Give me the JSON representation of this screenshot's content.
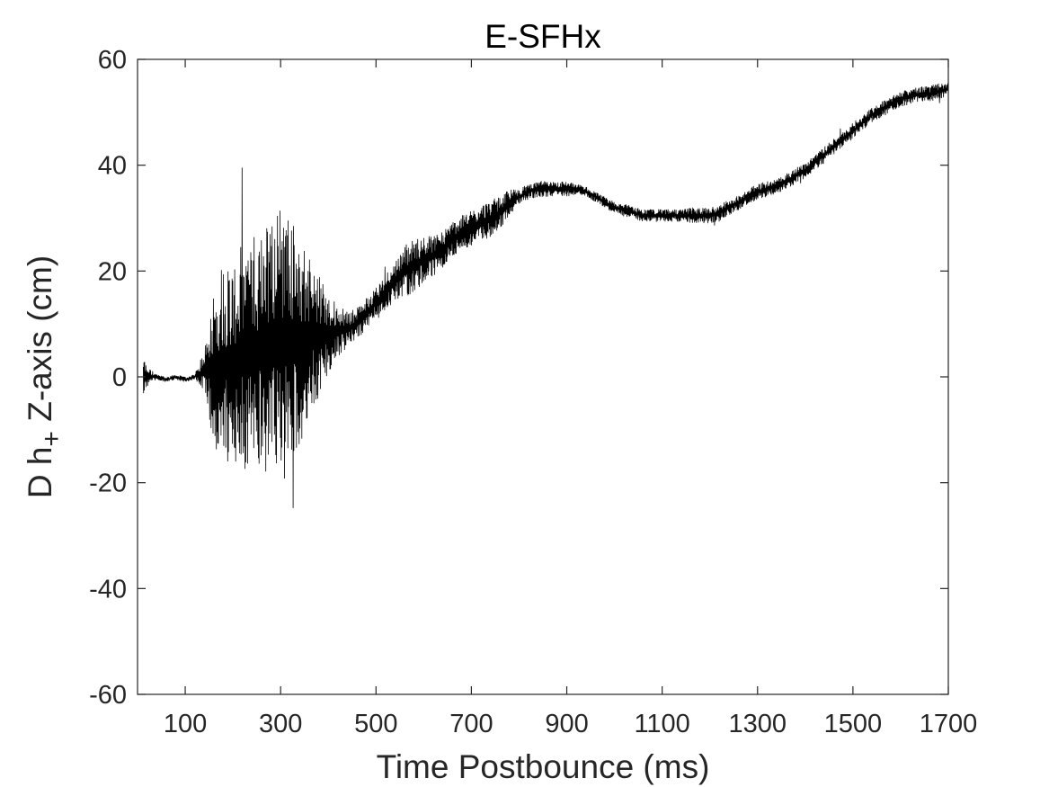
{
  "chart_data": {
    "type": "line",
    "title": "E-SFHx",
    "xlabel": "Time Postbounce (ms)",
    "ylabel_main": "D h",
    "ylabel_sub": "+",
    "ylabel_rest": " Z-axis (cm)",
    "xlim": [
      0,
      1700
    ],
    "ylim": [
      -60,
      60
    ],
    "xticks": [
      100,
      300,
      500,
      700,
      900,
      1100,
      1300,
      1500,
      1700
    ],
    "yticks": [
      -60,
      -40,
      -20,
      0,
      20,
      40,
      60
    ],
    "grid": false,
    "legend": "none",
    "line_color": "#000000",
    "series": [
      {
        "x": [
          0,
          10,
          20,
          40,
          60,
          80,
          100,
          120,
          140,
          160,
          180,
          200,
          220,
          240,
          260,
          280,
          300,
          320,
          340,
          360,
          380,
          400,
          420,
          440,
          460,
          480,
          500,
          520,
          540,
          560,
          580,
          600,
          620,
          640,
          660,
          680,
          700,
          720,
          740,
          760,
          780,
          800,
          820,
          840,
          860,
          880,
          900,
          920,
          940,
          960,
          980,
          1000,
          1020,
          1040,
          1060,
          1080,
          1100,
          1120,
          1140,
          1160,
          1180,
          1200,
          1220,
          1240,
          1260,
          1280,
          1300,
          1320,
          1340,
          1360,
          1380,
          1400,
          1420,
          1440,
          1460,
          1480,
          1500,
          1520,
          1540,
          1560,
          1580,
          1600,
          1620,
          1640,
          1660,
          1680,
          1700
        ],
        "y": [
          0,
          0.5,
          0,
          0,
          -0.5,
          0,
          -0.5,
          0,
          1,
          2,
          2.5,
          3,
          3.5,
          4.5,
          5,
          5.5,
          6,
          6.5,
          7,
          7,
          7.5,
          8,
          8.5,
          9,
          10,
          12,
          14,
          16,
          18,
          20,
          21,
          22,
          23,
          24,
          26,
          27,
          28,
          29,
          30,
          31,
          33,
          34,
          35,
          35.5,
          35.5,
          35.5,
          35.5,
          35.5,
          35,
          34,
          33,
          32,
          31.5,
          31,
          30.5,
          30.5,
          30.5,
          30.5,
          30.5,
          30.5,
          30.5,
          30.5,
          31,
          32,
          33,
          34,
          35,
          35.5,
          36,
          37,
          38,
          39,
          40.5,
          42,
          43.5,
          45,
          46.5,
          48,
          49.5,
          50.5,
          51.5,
          52.5,
          53,
          53.5,
          53.5,
          54,
          54.5
        ],
        "amp": [
          0,
          4,
          2,
          0.5,
          0.5,
          0.5,
          0.5,
          0.5,
          4,
          15,
          20,
          18,
          22,
          22,
          24,
          25,
          28,
          24,
          20,
          16,
          12,
          8,
          5,
          3.5,
          3,
          3,
          3,
          3.5,
          4,
          5,
          5,
          4.5,
          4,
          3.5,
          3.5,
          3.5,
          3.5,
          3.5,
          3.5,
          3,
          2.5,
          1.5,
          1.5,
          1.5,
          1.5,
          1.5,
          1.5,
          1,
          1,
          1,
          1,
          1.2,
          1.2,
          1.2,
          1.2,
          1.2,
          1.2,
          1.2,
          1.2,
          1.5,
          1.5,
          1.5,
          1.5,
          1.5,
          1.5,
          1.5,
          1.5,
          1.5,
          1.5,
          1.5,
          1.5,
          1.5,
          1.5,
          1.5,
          1.5,
          1.5,
          1.5,
          1.5,
          1.5,
          1.5,
          1.5,
          1.5,
          1.5,
          1.5,
          1.5,
          1.5,
          1.5
        ]
      }
    ]
  }
}
